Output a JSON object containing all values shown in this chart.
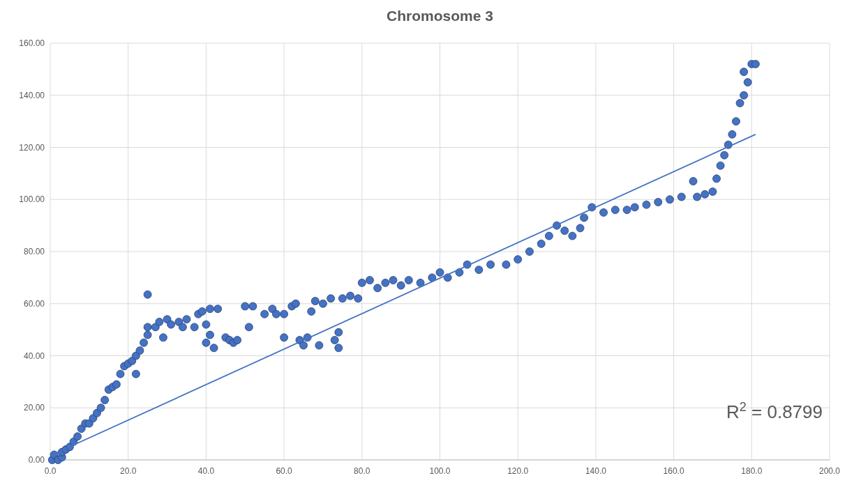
{
  "chart_data": {
    "type": "scatter",
    "title": "Chromosome 3",
    "xlim": [
      0,
      200
    ],
    "ylim": [
      0,
      160
    ],
    "xticks": [
      {
        "value": 0,
        "label": "0.0"
      },
      {
        "value": 20,
        "label": "20.0"
      },
      {
        "value": 40,
        "label": "40.0"
      },
      {
        "value": 60,
        "label": "60.0"
      },
      {
        "value": 80,
        "label": "80.0"
      },
      {
        "value": 100,
        "label": "100.0"
      },
      {
        "value": 120,
        "label": "120.0"
      },
      {
        "value": 140,
        "label": "140.0"
      },
      {
        "value": 160,
        "label": "160.0"
      },
      {
        "value": 180,
        "label": "180.0"
      },
      {
        "value": 200,
        "label": "200.0"
      }
    ],
    "yticks": [
      {
        "value": 0,
        "label": "0.00"
      },
      {
        "value": 20,
        "label": "20.00"
      },
      {
        "value": 40,
        "label": "40.00"
      },
      {
        "value": 60,
        "label": "60.00"
      },
      {
        "value": 80,
        "label": "80.00"
      },
      {
        "value": 100,
        "label": "100.00"
      },
      {
        "value": 120,
        "label": "120.00"
      },
      {
        "value": 140,
        "label": "140.00"
      },
      {
        "value": 160,
        "label": "160.00"
      }
    ],
    "grid": true,
    "marker": "circle",
    "annotations": [
      "R$^{2}$ = 0.8799"
    ],
    "series": [
      {
        "color": "#4472c4",
        "x": [
          0.5,
          1,
          2,
          3,
          3,
          4,
          5,
          6,
          7,
          8,
          9,
          10,
          11,
          12,
          13,
          14,
          15,
          16,
          17,
          18,
          19,
          20,
          21,
          22,
          22,
          23,
          24,
          25,
          25,
          25,
          27,
          28,
          29,
          30,
          31,
          33,
          34,
          35,
          37,
          38,
          39,
          40,
          40,
          41,
          41,
          42,
          43,
          45,
          46,
          47,
          48,
          50,
          51,
          52,
          55,
          57,
          58,
          60,
          60,
          62,
          63,
          64,
          65,
          66,
          67,
          68,
          69,
          70,
          72,
          73,
          74,
          74,
          75,
          77,
          79,
          80,
          82,
          84,
          86,
          88,
          90,
          92,
          95,
          98,
          100,
          102,
          105,
          107,
          110,
          113,
          117,
          120,
          123,
          126,
          128,
          130,
          132,
          134,
          136,
          137,
          139,
          142,
          145,
          148,
          150,
          153,
          156,
          159,
          162,
          165,
          166,
          168,
          170,
          171,
          172,
          173,
          174,
          175,
          176,
          177,
          178,
          178,
          179,
          180,
          181
        ],
        "values": [
          0,
          2,
          0,
          1,
          3,
          4,
          5,
          7,
          9,
          12,
          14,
          14,
          16,
          18,
          20,
          23,
          27,
          28,
          29,
          33,
          36,
          37,
          38,
          40,
          33,
          42,
          45,
          48,
          51,
          63.5,
          51,
          53,
          47,
          54,
          52,
          53,
          51,
          54,
          51,
          56,
          57,
          52,
          45,
          48,
          58,
          43,
          58,
          47,
          46,
          45,
          46,
          59,
          51,
          59,
          56,
          58,
          56,
          56,
          47,
          59,
          60,
          46,
          44,
          47,
          57,
          61,
          44,
          60,
          62,
          46,
          49,
          43,
          62,
          63,
          62,
          68,
          69,
          66,
          68,
          69,
          67,
          69,
          68,
          70,
          72,
          70,
          72,
          75,
          73,
          75,
          75,
          77,
          80,
          83,
          86,
          90,
          88,
          86,
          89,
          93,
          97,
          95,
          96,
          96,
          97,
          98,
          99,
          100,
          101,
          107,
          101,
          102,
          103,
          108,
          113,
          117,
          121,
          125,
          130,
          137,
          140,
          149,
          145,
          152,
          152
        ]
      },
      {
        "type": "line",
        "color": "#4472c4",
        "marker": "none",
        "x": [
          0.5,
          181
        ],
        "values": [
          2,
          125
        ]
      }
    ]
  }
}
